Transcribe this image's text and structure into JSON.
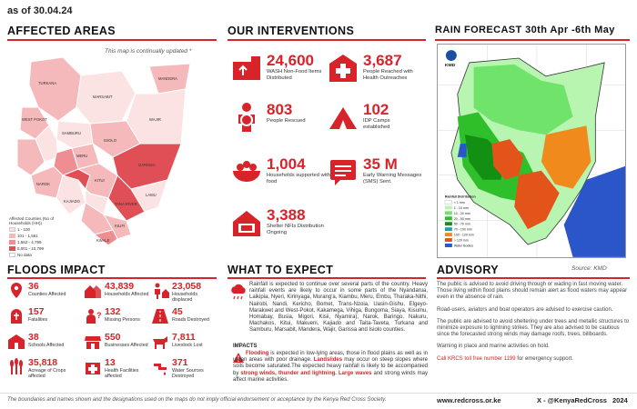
{
  "as_of": "as of 30.04.24",
  "affected_areas": {
    "title": "AFFECTED AREAS",
    "note": "This map is continually updated *",
    "legend": {
      "title": "Affected Counties (No of Households (HH))",
      "items": [
        {
          "label": "1 - 100",
          "color": "#fbe3e3"
        },
        {
          "label": "101 - 1,561",
          "color": "#f5b9bb"
        },
        {
          "label": "1,562 - 4,799",
          "color": "#ee8e92"
        },
        {
          "label": "5,001 - 10,799",
          "color": "#e04f55"
        },
        {
          "label": "No data",
          "color": "#ffffff"
        }
      ]
    },
    "map_labels": [
      "TURKANA",
      "MARSABIT",
      "MANDERA",
      "WAJIR",
      "ISIOLO",
      "GARISSA",
      "TANA RIVER",
      "KITUI",
      "KWALE",
      "KILIFI",
      "LAMU",
      "NAROK",
      "KAJIADO",
      "WEST POKOT",
      "SAMBURU",
      "MERU",
      "TAITA TAVETA",
      "MAKUENI",
      "BARINGO",
      "MOMBASA"
    ]
  },
  "interventions": {
    "title": "OUR INTERVENTIONS",
    "stats": [
      {
        "value": "24,600",
        "label": "WASH Non-Food Items Distributed",
        "icon": "wash-nfi-icon"
      },
      {
        "value": "3,687",
        "label": "People Reached with Health Outreaches",
        "icon": "health-cross-icon"
      },
      {
        "value": "803",
        "label": "People Rescued",
        "icon": "rescue-icon"
      },
      {
        "value": "102",
        "label": "IDP Camps established",
        "icon": "tent-icon"
      },
      {
        "value": "1,004",
        "label": "Households supported with food",
        "icon": "food-bowl-icon"
      },
      {
        "value": "35 M",
        "label": "Early Warning Messages (SMS) Sent.",
        "icon": "message-icon"
      },
      {
        "value": "3,388",
        "label": "Shelter NFIs Distribution Ongoing",
        "icon": "shelter-icon"
      }
    ]
  },
  "rain_forecast": {
    "title": "RAIN FORECAST 30th Apr -6th May",
    "source": "Source: KMD",
    "legend_title": "Rainfall Distribution",
    "legend": [
      {
        "label": "< 1 mm",
        "color": "#ffffff"
      },
      {
        "label": "1 - 10 mm",
        "color": "#b7f5b0"
      },
      {
        "label": "10 - 20 mm",
        "color": "#6fe36a"
      },
      {
        "label": "20 - 50 mm",
        "color": "#2fbf2a"
      },
      {
        "label": "50 - 70 mm",
        "color": "#138f13"
      },
      {
        "label": "70 - 100 mm",
        "color": "#1aa3a3"
      },
      {
        "label": "100 - 120 mm",
        "color": "#f08a1c"
      },
      {
        "label": "> 120 mm",
        "color": "#e2541a"
      },
      {
        "label": "Water Bodies",
        "color": "#2b56c9"
      }
    ],
    "kmd_label": "KMD"
  },
  "floods_impact": {
    "title": "FLOODS IMPACT",
    "stats": [
      {
        "value": "36",
        "label": "Counties Affected",
        "icon": "map-pin-icon"
      },
      {
        "value": "43,839",
        "label": "Households Affected",
        "icon": "houses-icon"
      },
      {
        "value": "23,058",
        "label": "Households displaced",
        "icon": "displaced-icon"
      },
      {
        "value": "157",
        "label": "Fatalities",
        "icon": "fatality-icon"
      },
      {
        "value": "132",
        "label": "Missing Persons",
        "icon": "missing-person-icon"
      },
      {
        "value": "45",
        "label": "Roads Destroyed",
        "icon": "road-icon"
      },
      {
        "value": "38",
        "label": "Schools Affected",
        "icon": "school-icon"
      },
      {
        "value": "550",
        "label": "Businesses Affected",
        "icon": "business-icon"
      },
      {
        "value": "7,811",
        "label": "Livestock Lost",
        "icon": "livestock-icon"
      },
      {
        "value": "35,818",
        "label": "Acreage of Crops affected",
        "icon": "crops-icon"
      },
      {
        "value": "13",
        "label": "Health Facilities affected",
        "icon": "health-facility-icon"
      },
      {
        "value": "371",
        "label": "Water Sources Destroyed",
        "icon": "water-source-icon"
      }
    ]
  },
  "what_to_expect": {
    "title": "WHAT TO EXPECT",
    "text": "Rainfall is expected to continue over several parts of the country. Heavy rainfall events are likely to occur in some parts of the Nyandarua, Laikipia, Nyeri, Kirinyaga, Murang'a, Kiambu, Meru, Embu, Tharaka-Nithi, Nairobi, Nandi, Kericho, Bomet, Trans-Nzoia, Uasin-Gishu, Elgeyo-Marakwet and West-Pokot, Kakamega, Vihiga, Bungoma, Siaya, Kisumu, Homabay, Busia, Migori, Kisii, Nyamira), Narok, Baringo, Nakuru, Machakos, Kitui, Makueni, Kajiado and Taita-Taveta, Turkana and Samburu, Marsabit, Mandera, Wajir, Garissa and Isiolo counties.",
    "impacts_title": "IMPACTS",
    "impact_1": "Flooding",
    "impact_1_text": " is expected in low-lying areas, those in flood plains as well as in urban areas with poor drainage. ",
    "impact_2": "Landslides",
    "impact_2_text": " may occur on steep slopes where soils become saturated.The expected heavy rainfall is likely to be accompanied by ",
    "impact_3": "strong winds, thunder and lightning. Large waves",
    "impact_3_text": " and strong winds may affect marine activities."
  },
  "advisory": {
    "title": "ADVISORY",
    "paragraphs": [
      "The public is advised to avoid driving through or wading in fast moving water. Those living within flood plains should remain alert as flood waters may appear even in the absence of rain.",
      "Road-users, aviators and boat operators are advised to exercise caution.",
      "The public are advised to avoid sheltering under trees and metallic structures to minimize exposure to lightning strikes. They are also advised to be cautious since the forecasted strong winds may damage roofs, trees, billboards.",
      "Warning in place and marine activities on hold."
    ],
    "hotline": "Call KRCS toll free number 1199",
    "hotline_suffix": " for emergency support."
  },
  "footer": {
    "disclaimer": "The boundaries and names shown and the designations used on the maps do not imply official endorsement or acceptance by the Kenya Red Cross Society.",
    "website": "www.redcross.or.ke",
    "social": "X - @KenyaRedCross",
    "year": "2024"
  },
  "colors": {
    "accent": "#d8232a"
  }
}
